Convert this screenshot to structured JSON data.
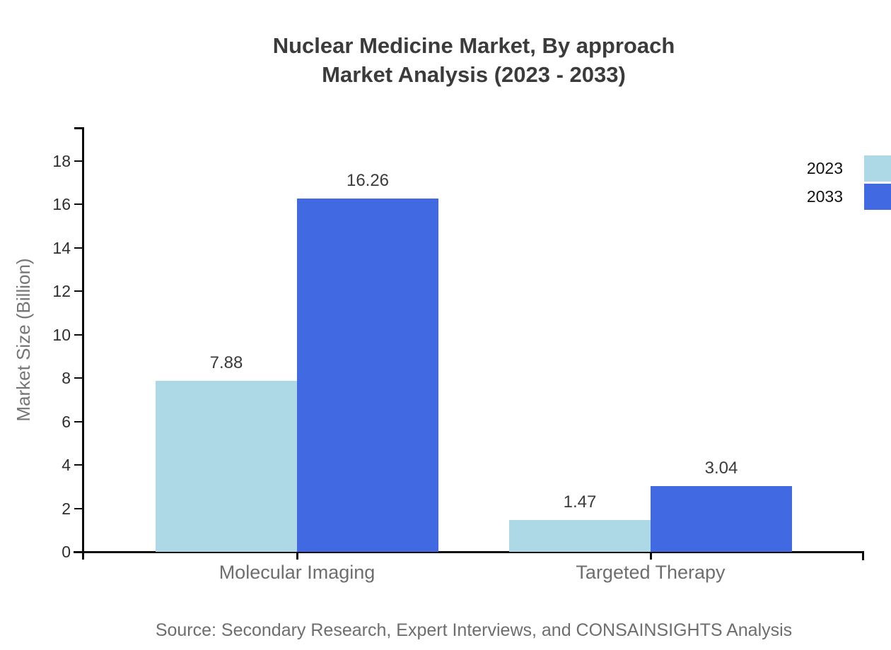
{
  "chart_data": {
    "type": "bar",
    "title": "Nuclear Medicine Market, By approach\nMarket Analysis (2023 - 2033)",
    "title_lines": [
      "Nuclear Medicine Market, By approach",
      "Market Analysis (2023 - 2033)"
    ],
    "categories": [
      "Molecular Imaging",
      "Targeted Therapy"
    ],
    "series": [
      {
        "name": "2023",
        "color": "#ADD8E6",
        "values": [
          7.88,
          1.47
        ]
      },
      {
        "name": "2033",
        "color": "#4169E1",
        "values": [
          16.26,
          3.04
        ]
      }
    ],
    "value_labels": [
      [
        "7.88",
        "1.47"
      ],
      [
        "16.26",
        "3.04"
      ]
    ],
    "xlabel": "",
    "ylabel": "Market Size (Billion)",
    "ylim": [
      0,
      19.6
    ],
    "yticks": [
      0,
      2,
      4,
      6,
      8,
      10,
      12,
      14,
      16,
      18
    ],
    "grid": false,
    "legend_position": "top-right",
    "source": "Source: Secondary Research, Expert Interviews, and CONSAINSIGHTS Analysis"
  },
  "colors": {
    "axis": "#0d0d0d",
    "title_text": "#3b3b3b",
    "tick_text": "#2f2f2f",
    "muted_text": "#6e6e6e",
    "background": "#ffffff"
  }
}
